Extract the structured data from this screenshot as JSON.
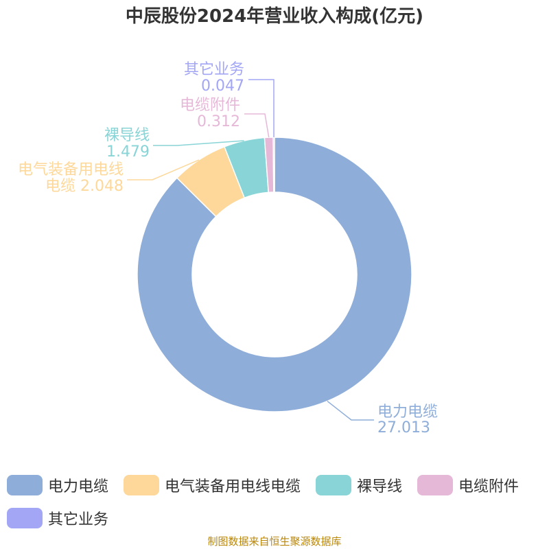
{
  "chart_data": {
    "type": "pie",
    "title": "中辰股份2024年营业收入构成(亿元)",
    "series": [
      {
        "name": "电力电缆",
        "value": 27.013,
        "label_line1": "电力电缆",
        "label_line2": "27.013",
        "color": "#8eadd9"
      },
      {
        "name": "电气装备用电线电缆",
        "value": 2.048,
        "label_line1": "电气装备用电线",
        "label_line2": "电缆 2.048",
        "color": "#fdd89a"
      },
      {
        "name": "裸导线",
        "value": 1.479,
        "label_line1": "裸导线",
        "label_line2": "1.479",
        "color": "#88d4d6"
      },
      {
        "name": "电缆附件",
        "value": 0.312,
        "label_line1": "电缆附件",
        "label_line2": "0.312",
        "color": "#e6b8d8"
      },
      {
        "name": "其它业务",
        "value": 0.047,
        "label_line1": "其它业务",
        "label_line2": "0.047",
        "color": "#a3a6f5"
      }
    ],
    "legend_position": "bottom-left"
  },
  "source": "制图数据来自恒生聚源数据库"
}
